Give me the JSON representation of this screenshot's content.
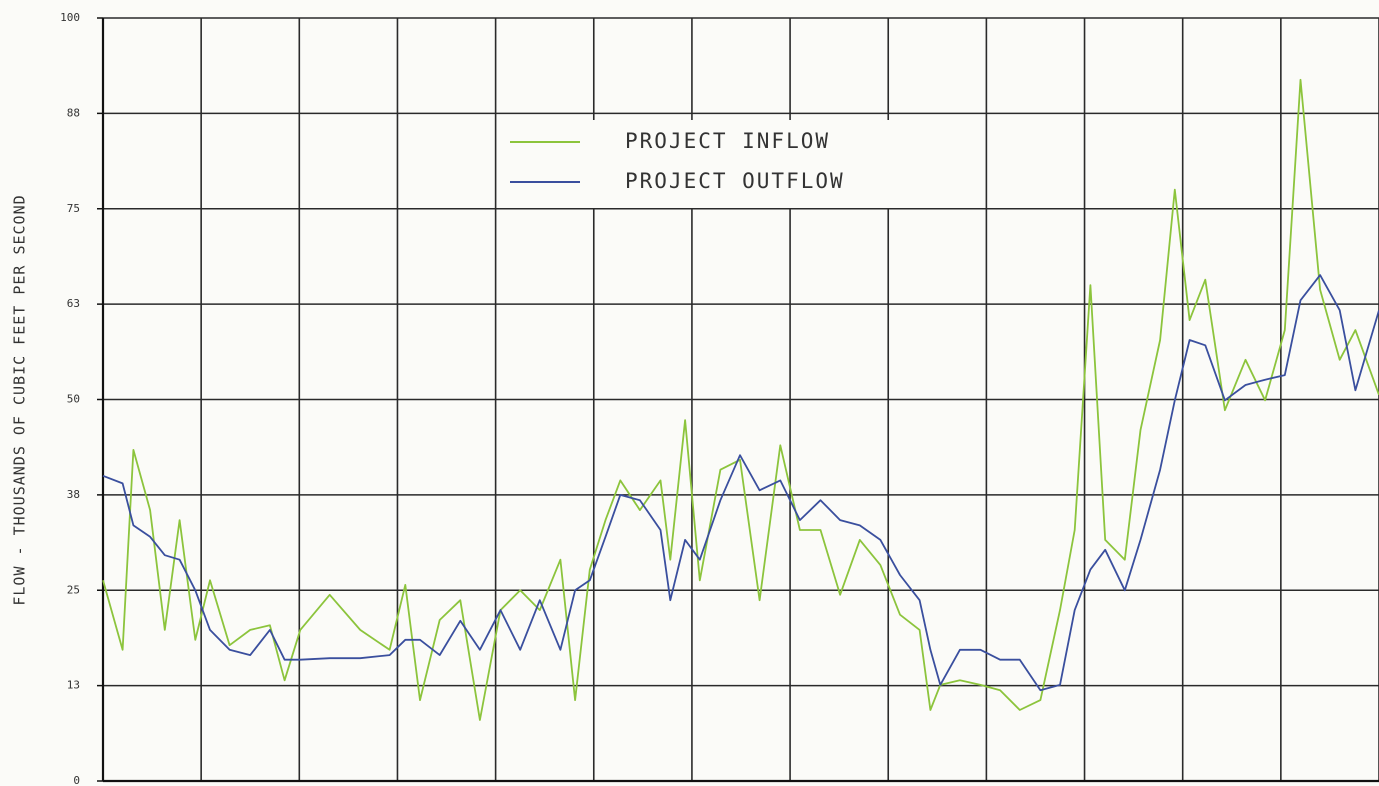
{
  "chart_data": {
    "type": "line",
    "y_label": "FLOW - THOUSANDS OF CUBIC FEET PER SECOND",
    "x": [
      0,
      0.2,
      0.31,
      0.48,
      0.63,
      0.78,
      0.94,
      1.09,
      1.29,
      1.5,
      1.7,
      1.85,
      2.01,
      2.31,
      2.62,
      2.92,
      3.08,
      3.23,
      3.43,
      3.64,
      3.84,
      4.05,
      4.25,
      4.45,
      4.66,
      4.81,
      4.96,
      5.12,
      5.27,
      5.47,
      5.68,
      5.78,
      5.93,
      6.08,
      6.29,
      6.49,
      6.69,
      6.9,
      7.1,
      7.31,
      7.51,
      7.71,
      7.92,
      8.12,
      8.32,
      8.43,
      8.53,
      8.73,
      8.94,
      9.14,
      9.34,
      9.55,
      9.75,
      9.9,
      10.06,
      10.21,
      10.41,
      10.57,
      10.77,
      10.92,
      11.07,
      11.23,
      11.43,
      11.64,
      11.84,
      12.04,
      12.2,
      12.4,
      12.6,
      12.76,
      13
    ],
    "xlim": [
      0,
      13
    ],
    "xticks": [
      0,
      1,
      2,
      3,
      4,
      5,
      6,
      7,
      8,
      9,
      10,
      11,
      12,
      13
    ],
    "ylim": [
      0,
      100
    ],
    "yticks": [
      0,
      {
        "value": 12.5,
        "label": "13"
      },
      25,
      {
        "value": 37.5,
        "label": "38"
      },
      50,
      {
        "value": 62.5,
        "label": "63"
      },
      75,
      {
        "value": 87.5,
        "label": "88"
      },
      100
    ],
    "grid": true,
    "legend": "top-center",
    "series": [
      {
        "name": "PROJECT INFLOW",
        "color": "#8cc43c",
        "values": [
          26.3,
          17.2,
          43.4,
          35.5,
          19.8,
          34.2,
          18.5,
          26.3,
          17.8,
          19.8,
          20.4,
          13.2,
          19.8,
          24.4,
          19.8,
          17.2,
          25.7,
          10.6,
          21.1,
          23.7,
          8,
          22.4,
          25,
          22.4,
          29,
          10.6,
          27.7,
          34.2,
          39.4,
          35.5,
          39.4,
          29,
          47.3,
          26.3,
          40.8,
          42.1,
          23.7,
          44,
          32.9,
          32.9,
          24.4,
          31.6,
          28.3,
          21.8,
          19.8,
          9.3,
          12.6,
          13.2,
          12.6,
          11.9,
          9.3,
          10.6,
          22.4,
          32.9,
          65,
          31.6,
          29,
          46,
          57.8,
          77.5,
          60.4,
          65.7,
          48.6,
          55.2,
          49.9,
          59.1,
          91.9,
          64.4,
          55.2,
          59.1,
          50.6
        ]
      },
      {
        "name": "PROJECT OUTFLOW",
        "color": "#3a4f9e",
        "values": [
          40,
          39,
          33.5,
          32,
          29.6,
          29,
          25,
          19.8,
          17.2,
          16.5,
          19.8,
          15.9,
          15.9,
          16.1,
          16.1,
          16.5,
          18.5,
          18.5,
          16.5,
          21,
          17.2,
          22.4,
          17.2,
          23.7,
          17.2,
          25,
          26.3,
          32,
          37.5,
          36.8,
          32.9,
          23.7,
          31.6,
          29,
          36.8,
          42.7,
          38.1,
          39.4,
          34.2,
          36.8,
          34.2,
          33.5,
          31.6,
          27,
          23.7,
          17.2,
          12.6,
          17.2,
          17.2,
          15.9,
          15.9,
          11.9,
          12.6,
          22.4,
          27.7,
          30.3,
          25,
          31.6,
          40.8,
          49.9,
          57.8,
          57.1,
          49.9,
          51.9,
          52.6,
          53.2,
          63,
          66.3,
          61.7,
          51.2,
          61.7
        ]
      }
    ]
  }
}
